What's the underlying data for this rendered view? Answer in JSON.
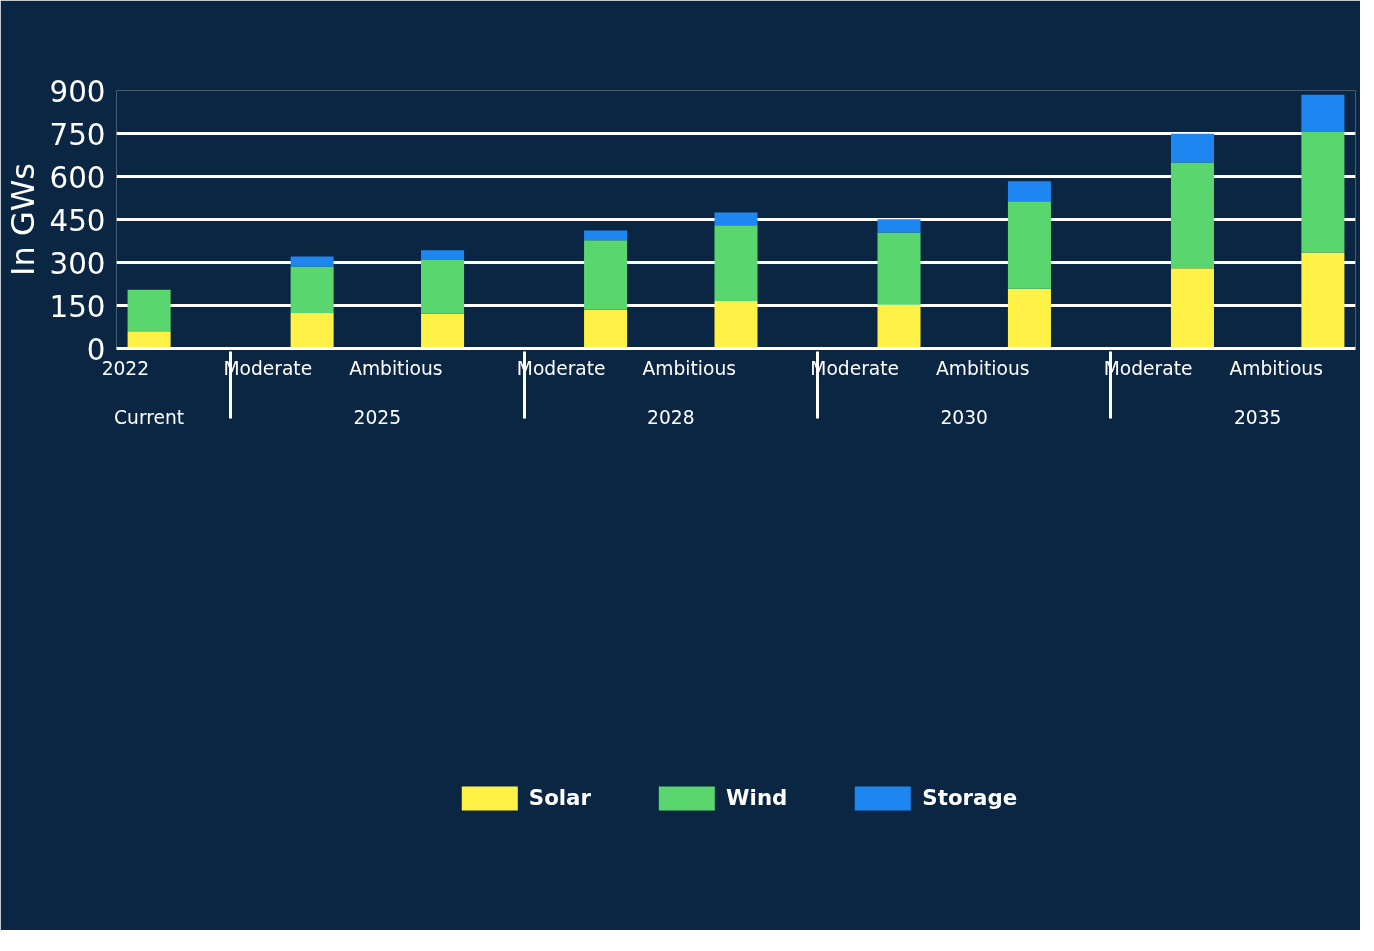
{
  "chart_data": {
    "type": "bar",
    "stacked": true,
    "ylabel": "In GWs",
    "categories": [
      [
        "Current",
        "2022"
      ],
      [
        "2025",
        "Moderate"
      ],
      [
        null,
        "Ambitious"
      ],
      [
        "2028",
        "Moderate"
      ],
      [
        null,
        "Ambitious"
      ],
      [
        "2030",
        "Moderate"
      ],
      [
        null,
        "Ambitious"
      ],
      [
        "2035",
        "Moderate"
      ],
      [
        null,
        "Ambitious"
      ]
    ],
    "series": [
      {
        "name": "Solar",
        "color": "#fff145",
        "values": [
          60,
          124,
          122,
          135,
          166,
          153,
          208,
          280,
          335
        ]
      },
      {
        "name": "Wind",
        "color": "#5ad66f",
        "values": [
          145,
          162,
          187,
          243,
          264,
          252,
          306,
          369,
          420
        ]
      },
      {
        "name": "Storage",
        "color": "#1e86f0",
        "values": [
          0,
          35,
          34,
          34,
          44,
          46,
          69,
          100,
          130
        ]
      }
    ],
    "ylim": [
      0,
      900
    ],
    "yticks": [
      0,
      150,
      300,
      450,
      600,
      750,
      900
    ],
    "grid": "y",
    "legend": "bottom"
  }
}
